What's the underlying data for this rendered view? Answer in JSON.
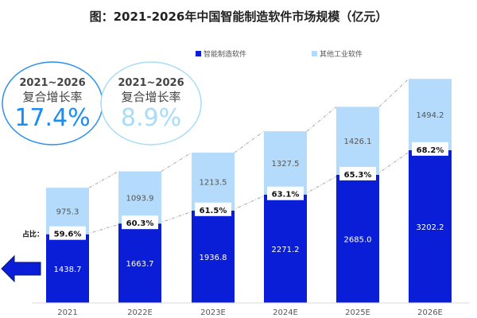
{
  "chart_data": {
    "type": "bar",
    "stacked": true,
    "title": "图：2021-2026年中国智能制造软件市场规模（亿元）",
    "categories": [
      "2021",
      "2022E",
      "2023E",
      "2024E",
      "2025E",
      "2026E"
    ],
    "series": [
      {
        "name": "智能制造软件",
        "color": "#0a1ed8",
        "values": [
          1438.7,
          1663.7,
          1936.8,
          2271.2,
          2685.0,
          3202.2
        ]
      },
      {
        "name": "其他工业软件",
        "color": "#b4dbfb",
        "values": [
          975.3,
          1093.9,
          1213.5,
          1327.5,
          1426.1,
          1494.2
        ]
      }
    ],
    "share_label": "占比：",
    "share": [
      "59.6%",
      "60.3%",
      "61.5%",
      "63.1%",
      "65.3%",
      "68.2%"
    ],
    "legend_placement": "top",
    "grid": false,
    "cagr": [
      {
        "period": "2021~2026",
        "label": "复合增长率",
        "value": "17.4%",
        "color": "#1a8cf5",
        "border": "#2a8ff0"
      },
      {
        "period": "2021~2026",
        "label": "复合增长率",
        "value": "8.9%",
        "color": "#a9dcfb",
        "border": "#a8dcf8"
      }
    ],
    "arrow_color": "#0a1ed8"
  }
}
